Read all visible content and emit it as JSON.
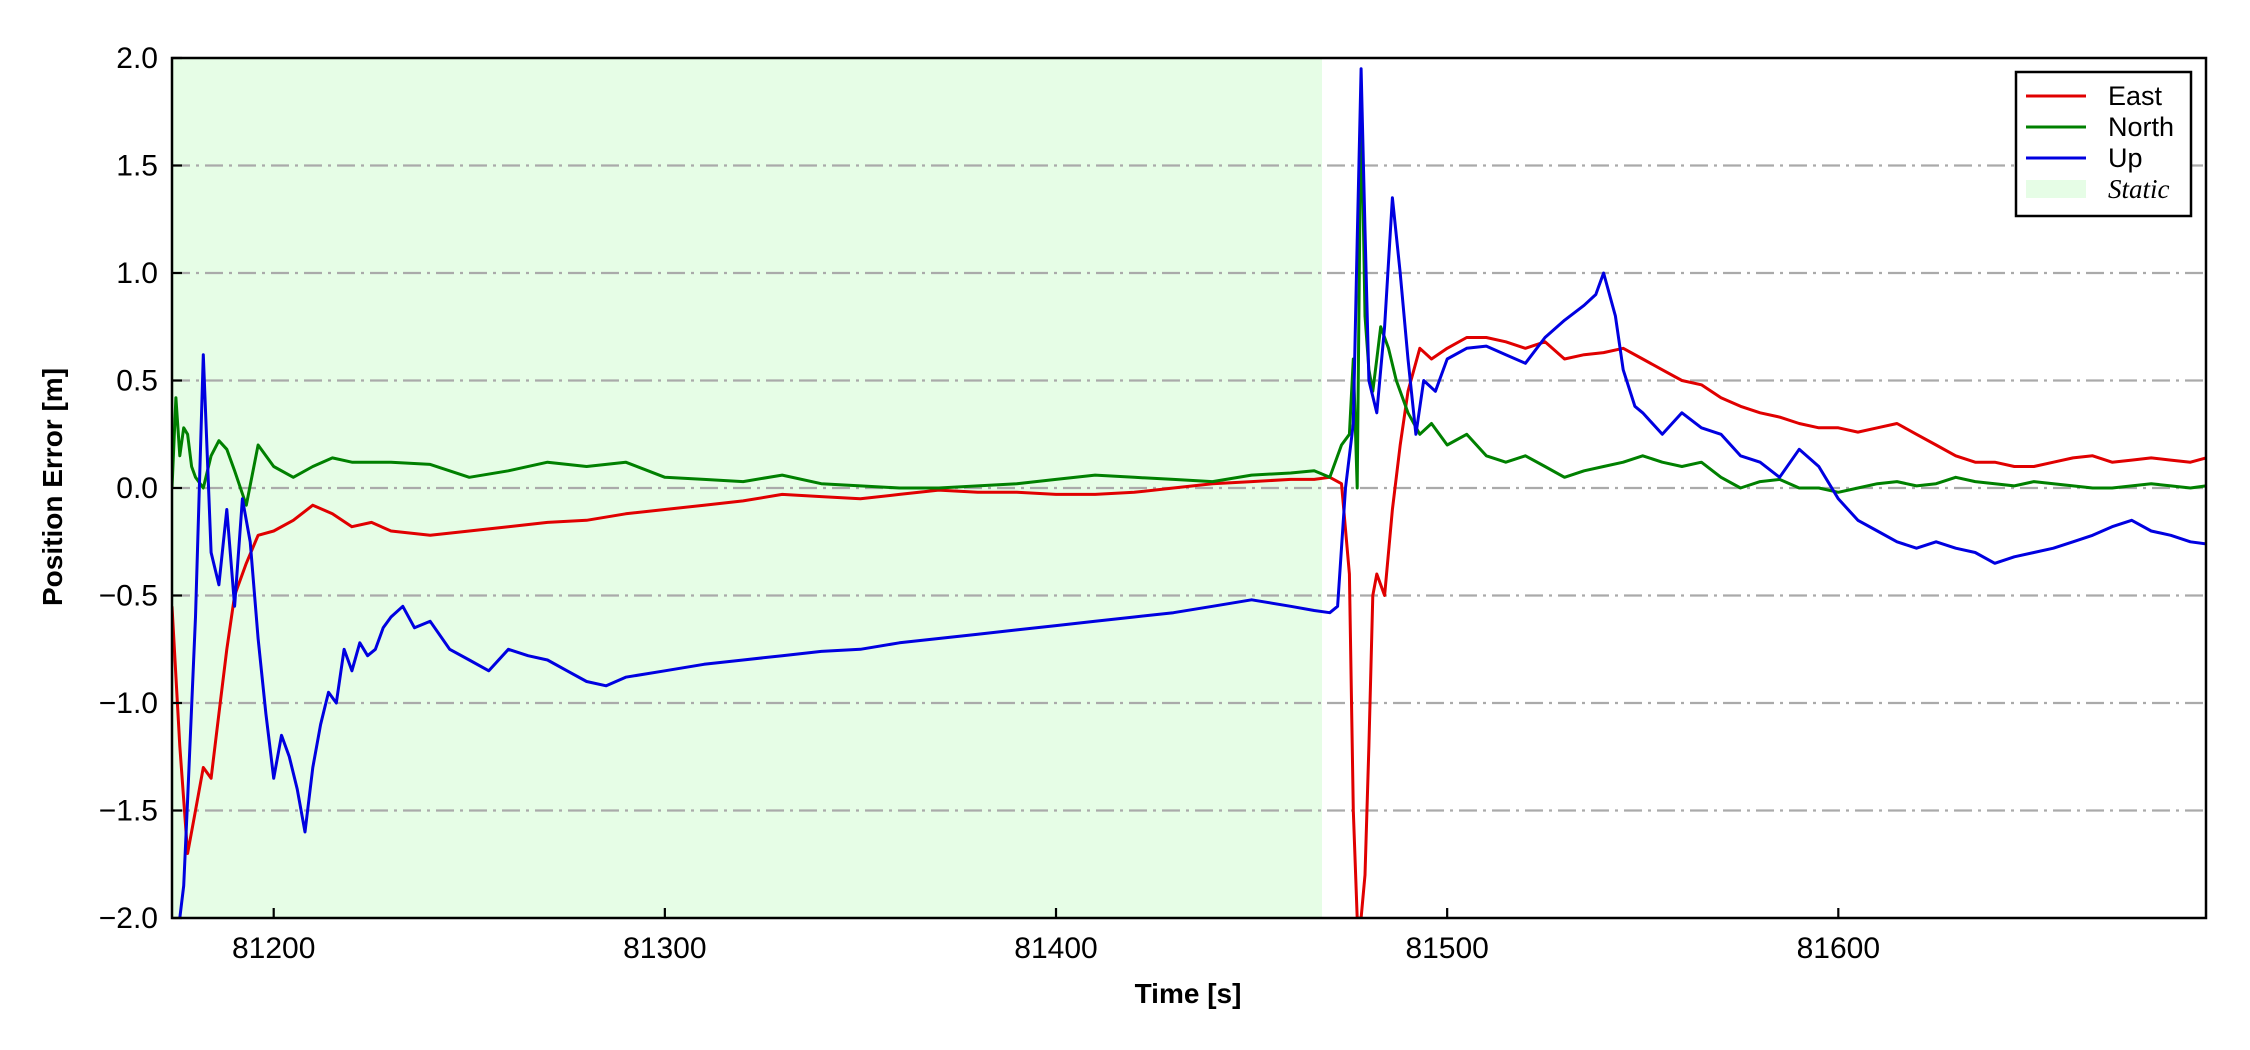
{
  "chart_data": {
    "type": "line",
    "xlabel": "Time [s]",
    "ylabel": "Position Error [m]",
    "xlim": [
      81174,
      81694
    ],
    "ylim": [
      -2.0,
      2.0
    ],
    "xticks": [
      81200,
      81300,
      81400,
      81500,
      81600
    ],
    "xtick_labels": [
      "81200",
      "81300",
      "81400",
      "81500",
      "81600"
    ],
    "yticks": [
      2.0,
      1.5,
      1.0,
      0.5,
      0.0,
      -0.5,
      -1.0,
      -1.5,
      -2.0
    ],
    "ytick_labels": [
      "2.0",
      "1.5",
      "1.0",
      "0.5",
      "0.0",
      "−0.5",
      "−1.0",
      "−1.5",
      "−2.0"
    ],
    "grid": "horizontal dash-dot",
    "legend_position": "top-right",
    "shaded_regions": [
      {
        "label": "Static",
        "x": [
          81174,
          81468
        ],
        "color": "#e6fde6"
      }
    ],
    "series": [
      {
        "name": "East",
        "color": "#e00000",
        "x": [
          81174,
          81176,
          81178,
          81180,
          81182,
          81184,
          81186,
          81188,
          81190,
          81193,
          81196,
          81200,
          81205,
          81210,
          81215,
          81220,
          81225,
          81230,
          81240,
          81250,
          81260,
          81270,
          81280,
          81290,
          81300,
          81310,
          81320,
          81330,
          81340,
          81350,
          81360,
          81370,
          81380,
          81390,
          81400,
          81410,
          81420,
          81430,
          81440,
          81450,
          81460,
          81466,
          81470,
          81473,
          81475,
          81476,
          81477,
          81478,
          81479,
          81480,
          81481,
          81482,
          81484,
          81486,
          81488,
          81490,
          81493,
          81496,
          81500,
          81505,
          81510,
          81515,
          81520,
          81525,
          81530,
          81535,
          81540,
          81545,
          81550,
          81555,
          81560,
          81565,
          81570,
          81575,
          81580,
          81585,
          81590,
          81595,
          81600,
          81605,
          81610,
          81615,
          81620,
          81625,
          81630,
          81635,
          81640,
          81645,
          81650,
          81655,
          81660,
          81665,
          81670,
          81675,
          81680,
          81685,
          81690,
          81694
        ],
        "values": [
          -0.55,
          -1.2,
          -1.7,
          -1.5,
          -1.3,
          -1.35,
          -1.05,
          -0.75,
          -0.5,
          -0.35,
          -0.22,
          -0.2,
          -0.15,
          -0.08,
          -0.12,
          -0.18,
          -0.16,
          -0.2,
          -0.22,
          -0.2,
          -0.18,
          -0.16,
          -0.15,
          -0.12,
          -0.1,
          -0.08,
          -0.06,
          -0.03,
          -0.04,
          -0.05,
          -0.03,
          -0.01,
          -0.02,
          -0.02,
          -0.03,
          -0.03,
          -0.02,
          0.0,
          0.02,
          0.03,
          0.04,
          0.04,
          0.05,
          0.02,
          -0.4,
          -1.5,
          -2.0,
          -2.0,
          -1.8,
          -1.2,
          -0.5,
          -0.4,
          -0.5,
          -0.1,
          0.2,
          0.45,
          0.65,
          0.6,
          0.65,
          0.7,
          0.7,
          0.68,
          0.65,
          0.68,
          0.6,
          0.62,
          0.63,
          0.65,
          0.6,
          0.55,
          0.5,
          0.48,
          0.42,
          0.38,
          0.35,
          0.33,
          0.3,
          0.28,
          0.28,
          0.26,
          0.28,
          0.3,
          0.25,
          0.2,
          0.15,
          0.12,
          0.12,
          0.1,
          0.1,
          0.12,
          0.14,
          0.15,
          0.12,
          0.13,
          0.14,
          0.13,
          0.12,
          0.14
        ]
      },
      {
        "name": "North",
        "color": "#008000",
        "x": [
          81174,
          81175,
          81176,
          81177,
          81178,
          81179,
          81180,
          81182,
          81184,
          81186,
          81188,
          81190,
          81193,
          81196,
          81200,
          81205,
          81210,
          81215,
          81220,
          81230,
          81240,
          81250,
          81260,
          81270,
          81280,
          81290,
          81300,
          81310,
          81320,
          81330,
          81340,
          81350,
          81360,
          81370,
          81380,
          81390,
          81400,
          81410,
          81420,
          81430,
          81440,
          81450,
          81460,
          81466,
          81470,
          81473,
          81475,
          81476,
          81477,
          81478,
          81479,
          81480,
          81481,
          81482,
          81483,
          81485,
          81487,
          81490,
          81493,
          81496,
          81500,
          81505,
          81510,
          81515,
          81520,
          81525,
          81530,
          81535,
          81540,
          81545,
          81550,
          81555,
          81560,
          81565,
          81570,
          81575,
          81580,
          81585,
          81590,
          81595,
          81600,
          81605,
          81610,
          81615,
          81620,
          81625,
          81630,
          81635,
          81640,
          81645,
          81650,
          81655,
          81660,
          81665,
          81670,
          81675,
          81680,
          81685,
          81690,
          81694
        ],
        "values": [
          0.0,
          0.42,
          0.15,
          0.28,
          0.25,
          0.1,
          0.05,
          0.0,
          0.15,
          0.22,
          0.18,
          0.08,
          -0.08,
          0.2,
          0.1,
          0.05,
          0.1,
          0.14,
          0.12,
          0.12,
          0.11,
          0.05,
          0.08,
          0.12,
          0.1,
          0.12,
          0.05,
          0.04,
          0.03,
          0.06,
          0.02,
          0.01,
          0.0,
          0.0,
          0.01,
          0.02,
          0.04,
          0.06,
          0.05,
          0.04,
          0.03,
          0.06,
          0.07,
          0.08,
          0.05,
          0.2,
          0.25,
          0.6,
          0.0,
          1.85,
          0.8,
          0.55,
          0.45,
          0.6,
          0.75,
          0.65,
          0.5,
          0.35,
          0.25,
          0.3,
          0.2,
          0.25,
          0.15,
          0.12,
          0.15,
          0.1,
          0.05,
          0.08,
          0.1,
          0.12,
          0.15,
          0.12,
          0.1,
          0.12,
          0.05,
          0.0,
          0.03,
          0.04,
          0.0,
          0.0,
          -0.02,
          0.0,
          0.02,
          0.03,
          0.01,
          0.02,
          0.05,
          0.03,
          0.02,
          0.01,
          0.03,
          0.02,
          0.01,
          0.0,
          0.0,
          0.01,
          0.02,
          0.01,
          0.0,
          0.01
        ]
      },
      {
        "name": "Up",
        "color": "#0000e0",
        "x": [
          81176,
          81177,
          81178,
          81180,
          81182,
          81184,
          81186,
          81188,
          81190,
          81192,
          81194,
          81196,
          81198,
          81200,
          81202,
          81204,
          81206,
          81208,
          81210,
          81212,
          81214,
          81216,
          81218,
          81220,
          81222,
          81224,
          81226,
          81228,
          81230,
          81233,
          81236,
          81240,
          81245,
          81250,
          81255,
          81260,
          81265,
          81270,
          81275,
          81280,
          81285,
          81290,
          81300,
          81310,
          81320,
          81330,
          81340,
          81350,
          81360,
          81370,
          81380,
          81390,
          81400,
          81410,
          81420,
          81430,
          81440,
          81450,
          81460,
          81466,
          81470,
          81472,
          81474,
          81476,
          81477,
          81478,
          81479,
          81480,
          81482,
          81484,
          81486,
          81488,
          81490,
          81492,
          81494,
          81497,
          81500,
          81505,
          81510,
          81515,
          81520,
          81525,
          81530,
          81535,
          81538,
          81540,
          81543,
          81545,
          81548,
          81550,
          81555,
          81560,
          81565,
          81570,
          81575,
          81580,
          81585,
          81590,
          81595,
          81600,
          81605,
          81610,
          81615,
          81620,
          81625,
          81630,
          81635,
          81640,
          81645,
          81650,
          81655,
          81660,
          81665,
          81670,
          81675,
          81680,
          81685,
          81690,
          81694
        ],
        "values": [
          -2.0,
          -1.85,
          -1.45,
          -0.6,
          0.62,
          -0.3,
          -0.45,
          -0.1,
          -0.55,
          -0.05,
          -0.25,
          -0.7,
          -1.05,
          -1.35,
          -1.15,
          -1.25,
          -1.4,
          -1.6,
          -1.3,
          -1.1,
          -0.95,
          -1.0,
          -0.75,
          -0.85,
          -0.72,
          -0.78,
          -0.75,
          -0.65,
          -0.6,
          -0.55,
          -0.65,
          -0.62,
          -0.75,
          -0.8,
          -0.85,
          -0.75,
          -0.78,
          -0.8,
          -0.85,
          -0.9,
          -0.92,
          -0.88,
          -0.85,
          -0.82,
          -0.8,
          -0.78,
          -0.76,
          -0.75,
          -0.72,
          -0.7,
          -0.68,
          -0.66,
          -0.64,
          -0.62,
          -0.6,
          -0.58,
          -0.55,
          -0.52,
          -0.55,
          -0.57,
          -0.58,
          -0.55,
          0.0,
          0.3,
          1.15,
          1.95,
          1.2,
          0.5,
          0.35,
          0.75,
          1.35,
          1.0,
          0.6,
          0.25,
          0.5,
          0.45,
          0.6,
          0.65,
          0.66,
          0.62,
          0.58,
          0.7,
          0.78,
          0.85,
          0.9,
          1.0,
          0.8,
          0.55,
          0.38,
          0.35,
          0.25,
          0.35,
          0.28,
          0.25,
          0.15,
          0.12,
          0.05,
          0.18,
          0.1,
          -0.05,
          -0.15,
          -0.2,
          -0.25,
          -0.28,
          -0.25,
          -0.28,
          -0.3,
          -0.35,
          -0.32,
          -0.3,
          -0.28,
          -0.25,
          -0.22,
          -0.18,
          -0.15,
          -0.2,
          -0.22,
          -0.25,
          -0.26
        ]
      }
    ]
  }
}
